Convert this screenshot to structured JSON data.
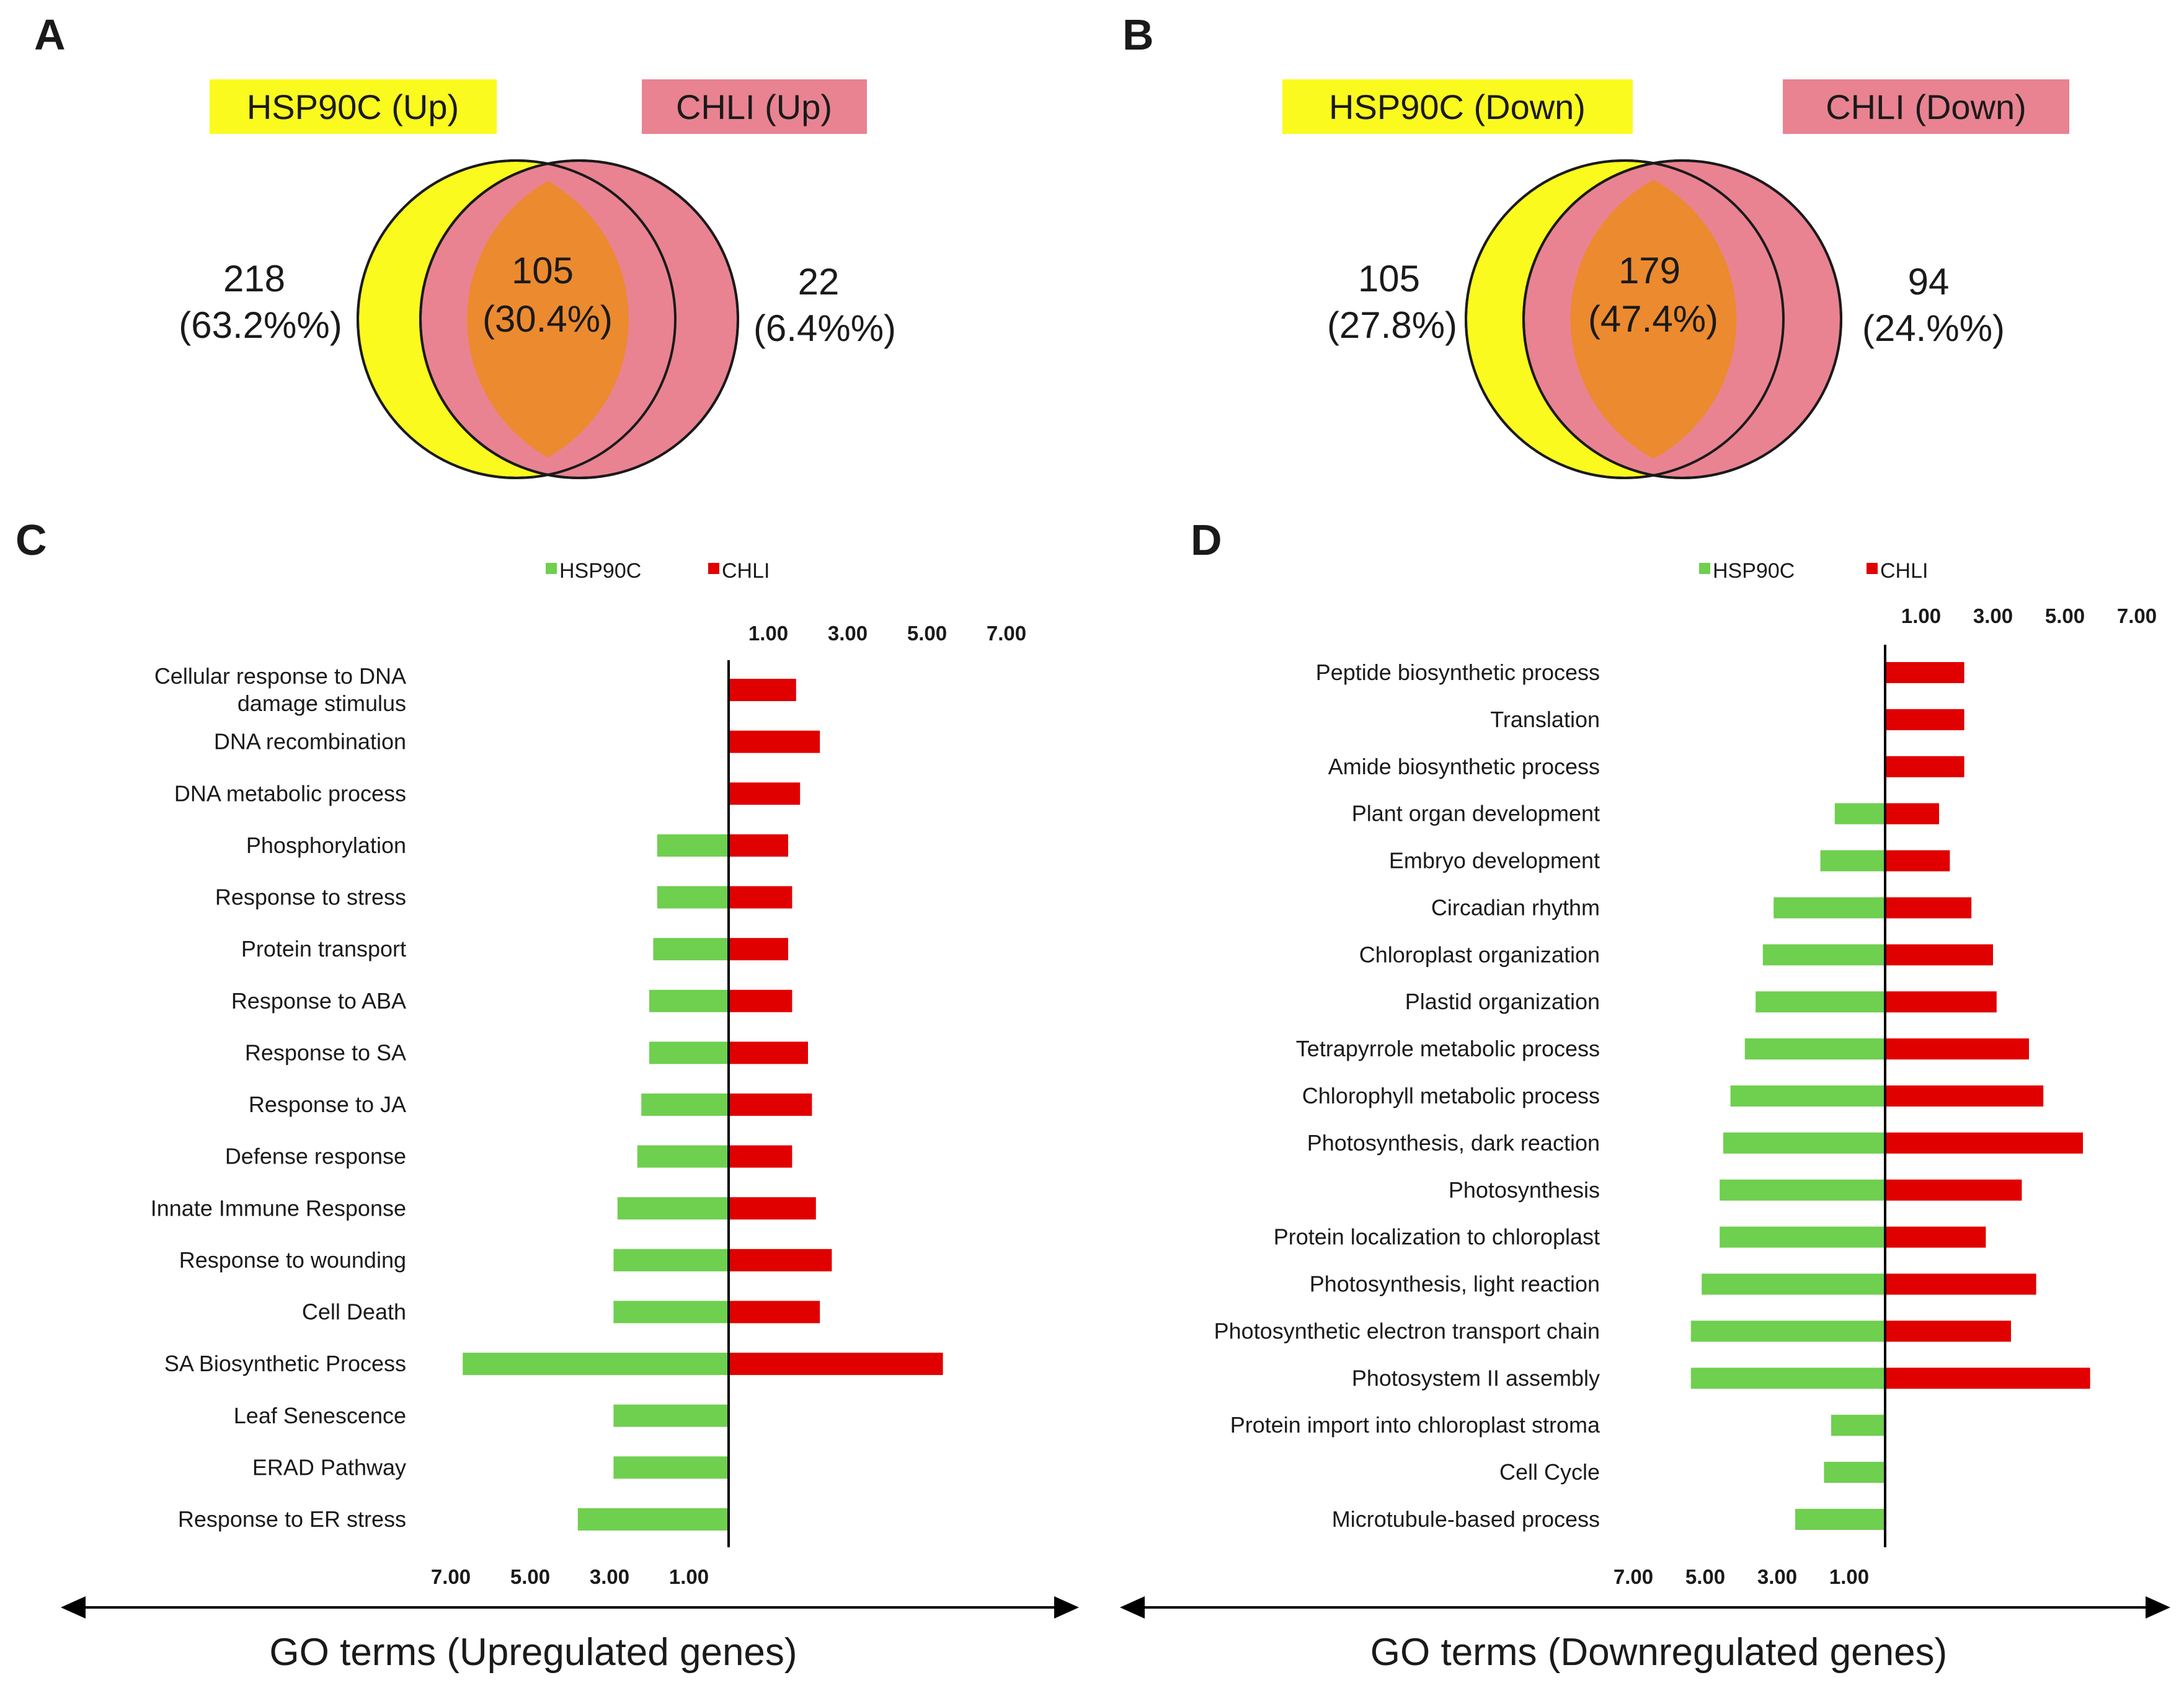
{
  "panels": {
    "a": "A",
    "b": "B",
    "c": "C",
    "d": "D"
  },
  "colors": {
    "hsp_circle": "#fbfa1f",
    "chl_circle": "#e98391",
    "overlap": "#ec8a2f",
    "hsp_label_bg": "#fbfa1f",
    "chl_label_bg": "#e98391",
    "hsp_bar": "#6fcf4f",
    "chl_bar": "#e00000"
  },
  "venn_up": {
    "hsp_label": "HSP90C (Up)",
    "chl_label": "CHLI (Up)",
    "left_count": "218",
    "left_pct": "(63.2%%)",
    "overlap_count": "105",
    "overlap_pct": "(30.4%)",
    "right_count": "22",
    "right_pct": "(6.4%%)"
  },
  "venn_down": {
    "hsp_label": "HSP90C (Down)",
    "chl_label": "CHLI (Down)",
    "left_count": "105",
    "left_pct": "(27.8%)",
    "overlap_count": "179",
    "overlap_pct": "(47.4%)",
    "right_count": "94",
    "right_pct": "(24.%%)"
  },
  "chart_data": [
    {
      "type": "bar",
      "orientation": "horizontal-diverging",
      "title": "GO terms (Upregulated genes)",
      "legend": [
        "HSP90C",
        "CHLI"
      ],
      "top_ticks": [
        "1.00",
        "3.00",
        "5.00",
        "7.00"
      ],
      "bottom_ticks": [
        "7.00",
        "5.00",
        "3.00",
        "1.00"
      ],
      "range": [
        0,
        7
      ],
      "categories": [
        "Cellular response to DNA damage stimulus",
        "DNA recombination",
        "DNA metabolic process",
        "Phosphorylation",
        "Response to stress",
        "Protein transport",
        "Response to ABA",
        "Response to SA",
        "Response to JA",
        "Defense response",
        "Innate Immune Response",
        "Response to wounding",
        "Cell Death",
        "SA Biosynthetic Process",
        "Leaf Senescence",
        "ERAD Pathway",
        "Response to ER stress"
      ],
      "series": [
        {
          "name": "HSP90C",
          "values": [
            0,
            0,
            0,
            1.8,
            1.8,
            1.9,
            2.0,
            2.0,
            2.2,
            2.3,
            2.8,
            2.9,
            2.9,
            6.7,
            2.9,
            2.9,
            3.8
          ]
        },
        {
          "name": "CHLI",
          "values": [
            1.7,
            2.3,
            1.8,
            1.5,
            1.6,
            1.5,
            1.6,
            2.0,
            2.1,
            1.6,
            2.2,
            2.6,
            2.3,
            5.4,
            0,
            0,
            0
          ]
        }
      ]
    },
    {
      "type": "bar",
      "orientation": "horizontal-diverging",
      "title": "GO terms (Downregulated genes)",
      "legend": [
        "HSP90C",
        "CHLI"
      ],
      "top_ticks": [
        "1.00",
        "3.00",
        "5.00",
        "7.00"
      ],
      "bottom_ticks": [
        "7.00",
        "5.00",
        "3.00",
        "1.00"
      ],
      "range": [
        0,
        7
      ],
      "categories": [
        "Peptide biosynthetic process",
        "Translation",
        "Amide biosynthetic process",
        "Plant organ development",
        "Embryo development",
        "Circadian rhythm",
        "Chloroplast organization",
        "Plastid organization",
        "Tetrapyrrole metabolic process",
        "Chlorophyll metabolic process",
        "Photosynthesis, dark reaction",
        "Photosynthesis",
        "Protein localization to chloroplast",
        "Photosynthesis, light reaction",
        "Photosynthetic electron transport chain",
        "Photosystem II assembly",
        "Protein import into chloroplast stroma",
        "Cell Cycle",
        "Microtubule-based process"
      ],
      "series": [
        {
          "name": "HSP90C",
          "values": [
            0,
            0,
            0,
            1.4,
            1.8,
            3.1,
            3.4,
            3.6,
            3.9,
            4.3,
            4.5,
            4.6,
            4.6,
            5.1,
            5.4,
            5.4,
            1.5,
            1.7,
            2.5
          ]
        },
        {
          "name": "CHLI",
          "values": [
            2.2,
            2.2,
            2.2,
            1.5,
            1.8,
            2.4,
            3.0,
            3.1,
            4.0,
            4.4,
            5.5,
            3.8,
            2.8,
            4.2,
            3.5,
            5.7,
            0,
            0,
            0
          ]
        }
      ]
    }
  ]
}
